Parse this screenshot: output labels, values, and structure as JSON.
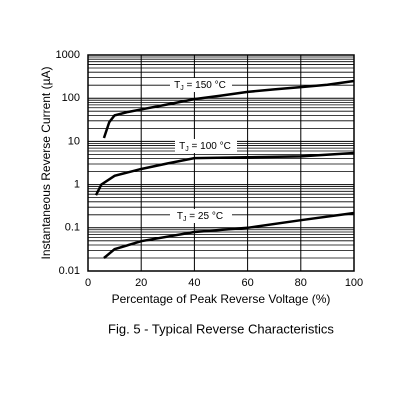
{
  "chart_data": {
    "type": "line",
    "title": "Fig. 5 - Typical Reverse Characteristics",
    "xlabel": "Percentage of Peak Reverse Voltage (%)",
    "ylabel": "Instantaneous Reverse Current (µA)",
    "xlim": [
      0,
      100
    ],
    "xticks": [
      0,
      20,
      40,
      60,
      80,
      100
    ],
    "ylim": [
      0.01,
      1000
    ],
    "yticks": [
      0.01,
      0.1,
      1,
      10,
      100,
      1000
    ],
    "yscale": "log",
    "grid": true,
    "series": [
      {
        "label": {
          "main": "T",
          "sub": "J",
          "rest": " = 150 °C"
        },
        "color": "#000000",
        "x": [
          6,
          8,
          10,
          15,
          20,
          30,
          40,
          50,
          60,
          70,
          80,
          90,
          100
        ],
        "values": [
          12,
          28,
          40,
          48,
          55,
          72,
          95,
          115,
          140,
          160,
          180,
          205,
          250
        ]
      },
      {
        "label": {
          "main": "T",
          "sub": "J",
          "rest": " = 100 °C"
        },
        "color": "#000000",
        "x": [
          3,
          5,
          10,
          20,
          30,
          40,
          60,
          80,
          100
        ],
        "values": [
          0.57,
          1.0,
          1.6,
          2.3,
          3.1,
          4.1,
          4.3,
          4.5,
          5.4
        ]
      },
      {
        "label": {
          "main": "T",
          "sub": "J",
          "rest": " = 25 °C"
        },
        "color": "#000000",
        "x": [
          6,
          10,
          20,
          40,
          60,
          80,
          100
        ],
        "values": [
          0.02,
          0.032,
          0.049,
          0.08,
          0.1,
          0.15,
          0.22
        ]
      }
    ]
  }
}
